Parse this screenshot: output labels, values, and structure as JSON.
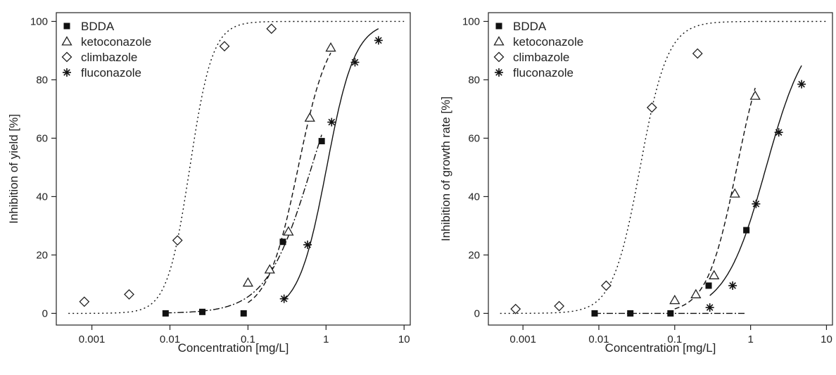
{
  "chart_data": [
    {
      "type": "scatter",
      "title": "",
      "xlabel": "Concentration [mg/L]",
      "ylabel": "Inhibition of yield [%]",
      "x_scale": "log",
      "xlim": [
        0.00035,
        12
      ],
      "ylim": [
        -4,
        103
      ],
      "x_ticks": [
        0.001,
        0.01,
        0.1,
        1,
        10
      ],
      "x_tick_labels": [
        "0.001",
        "0.01",
        "0.1",
        "1",
        "10"
      ],
      "y_ticks": [
        0,
        20,
        40,
        60,
        80,
        100
      ],
      "y_tick_labels": [
        "0",
        "20",
        "40",
        "60",
        "80",
        "100"
      ],
      "legend_position": "top-left",
      "grid": false,
      "series": [
        {
          "name": "BDDA",
          "marker": "filled-square",
          "line_style": "dashdot",
          "points": [
            [
              0.0088,
              0
            ],
            [
              0.026,
              0.5
            ],
            [
              0.088,
              0
            ],
            [
              0.28,
              24.5
            ],
            [
              0.88,
              59
            ]
          ],
          "curve": {
            "model": "log-logistic",
            "ec50": 0.65,
            "slope": 1.5,
            "top": 100,
            "x_range": [
              0.0088,
              0.88
            ]
          }
        },
        {
          "name": "ketoconazole",
          "marker": "open-triangle",
          "line_style": "dashed",
          "points": [
            [
              0.1,
              10.5
            ],
            [
              0.19,
              15
            ],
            [
              0.33,
              28
            ],
            [
              0.62,
              67
            ],
            [
              1.15,
              91
            ]
          ],
          "curve": {
            "model": "log-logistic",
            "ec50": 0.44,
            "slope": 2.2,
            "top": 100,
            "x_range": [
              0.1,
              1.15
            ]
          }
        },
        {
          "name": "climbazole",
          "marker": "open-diamond",
          "line_style": "dotted",
          "points": [
            [
              0.0008,
              4
            ],
            [
              0.003,
              6.5
            ],
            [
              0.0125,
              25
            ],
            [
              0.05,
              91.5
            ],
            [
              0.2,
              97.5
            ]
          ],
          "curve": {
            "model": "log-logistic",
            "ec50": 0.018,
            "slope": 3,
            "top": 100,
            "x_range": [
              0.0005,
              10
            ]
          }
        },
        {
          "name": "fluconazole",
          "marker": "asterisk",
          "line_style": "solid",
          "points": [
            [
              0.29,
              5
            ],
            [
              0.58,
              23.5
            ],
            [
              1.18,
              65.5
            ],
            [
              2.35,
              86
            ],
            [
              4.7,
              93.5
            ]
          ],
          "curve": {
            "model": "log-logistic",
            "ec50": 1.02,
            "slope": 2.4,
            "top": 100,
            "x_range": [
              0.29,
              4.7
            ]
          }
        }
      ]
    },
    {
      "type": "scatter",
      "title": "",
      "xlabel": "Concentration [mg/L]",
      "ylabel": "Inhibition of growth rate [%]",
      "x_scale": "log",
      "xlim": [
        0.00035,
        12
      ],
      "ylim": [
        -4,
        103
      ],
      "x_ticks": [
        0.001,
        0.01,
        0.1,
        1,
        10
      ],
      "x_tick_labels": [
        "0.001",
        "0.01",
        "0.1",
        "1",
        "10"
      ],
      "y_ticks": [
        0,
        20,
        40,
        60,
        80,
        100
      ],
      "y_tick_labels": [
        "0",
        "20",
        "40",
        "60",
        "80",
        "100"
      ],
      "legend_position": "top-left",
      "grid": false,
      "series": [
        {
          "name": "BDDA",
          "marker": "filled-square",
          "line_style": "dashdot",
          "points": [
            [
              0.0088,
              0
            ],
            [
              0.026,
              0
            ],
            [
              0.088,
              0
            ],
            [
              0.28,
              9.5
            ],
            [
              0.88,
              28.5
            ]
          ],
          "curve": {
            "model": "flat",
            "value": 0,
            "x_range": [
              0.0088,
              0.88
            ]
          }
        },
        {
          "name": "ketoconazole",
          "marker": "open-triangle",
          "line_style": "dashed",
          "points": [
            [
              0.1,
              4.5
            ],
            [
              0.19,
              6.5
            ],
            [
              0.33,
              13
            ],
            [
              0.62,
              41
            ],
            [
              1.15,
              74.5
            ]
          ],
          "curve": {
            "model": "log-logistic",
            "ec50": 0.66,
            "slope": 2.2,
            "top": 100,
            "x_range": [
              0.1,
              1.15
            ]
          }
        },
        {
          "name": "climbazole",
          "marker": "open-diamond",
          "line_style": "dotted",
          "points": [
            [
              0.0008,
              1.5
            ],
            [
              0.003,
              2.5
            ],
            [
              0.0125,
              9.5
            ],
            [
              0.05,
              70.5
            ],
            [
              0.2,
              89
            ]
          ],
          "curve": {
            "model": "log-logistic",
            "ec50": 0.035,
            "slope": 2.4,
            "top": 100,
            "x_range": [
              0.0005,
              10
            ]
          }
        },
        {
          "name": "fluconazole",
          "marker": "asterisk",
          "line_style": "solid",
          "points": [
            [
              0.29,
              2
            ],
            [
              0.58,
              9.5
            ],
            [
              1.18,
              37.5
            ],
            [
              2.35,
              62
            ],
            [
              4.7,
              78.5
            ]
          ],
          "curve": {
            "model": "log-logistic",
            "ec50": 1.6,
            "slope": 1.6,
            "top": 100,
            "x_range": [
              0.29,
              4.7
            ]
          }
        }
      ]
    }
  ]
}
